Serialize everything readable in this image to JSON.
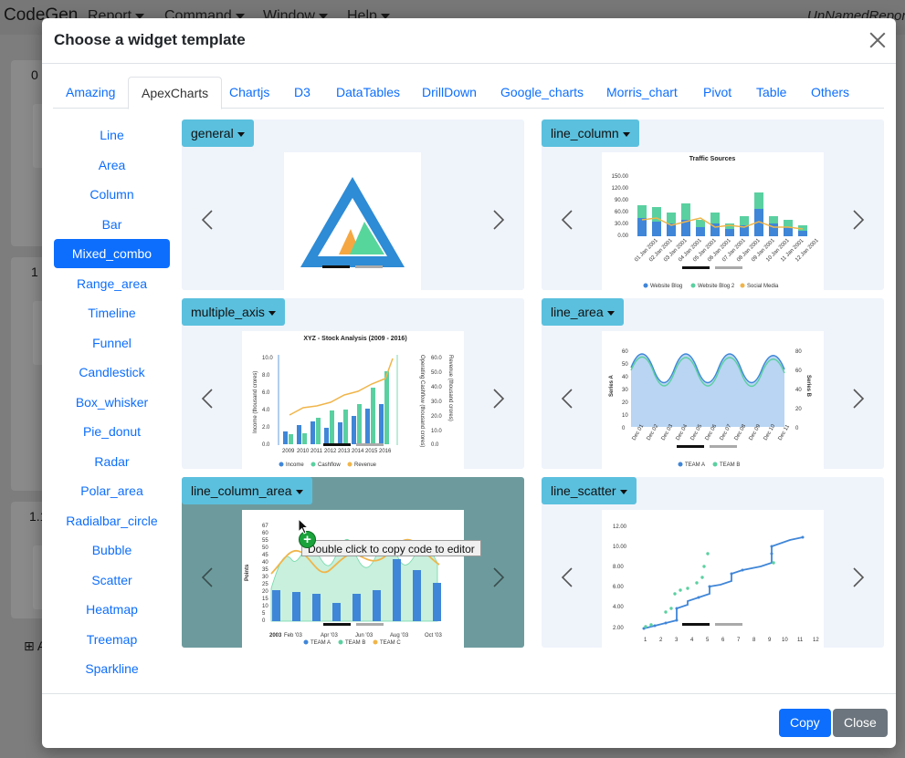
{
  "app": {
    "brand": "CodeGen",
    "menus": [
      "Report",
      "Command",
      "Window",
      "Help"
    ],
    "file": "UnNamedRepor",
    "panels": [
      "0",
      "1",
      "1.1"
    ],
    "add_label": "A"
  },
  "modal": {
    "title": "Choose a widget template",
    "tabs": [
      "Amazing",
      "ApexCharts",
      "Chartjs",
      "D3",
      "DataTables",
      "DrillDown",
      "Google_charts",
      "Morris_chart",
      "Pivot",
      "Table",
      "Others"
    ],
    "active_tab": "ApexCharts",
    "sidebar": [
      "Line",
      "Area",
      "Column",
      "Bar",
      "Mixed_combo",
      "Range_area",
      "Timeline",
      "Funnel",
      "Candlestick",
      "Box_whisker",
      "Pie_donut",
      "Radar",
      "Polar_area",
      "Radialbar_circle",
      "Bubble",
      "Scatter",
      "Heatmap",
      "Treemap",
      "Sparkline"
    ],
    "active_sidebar": "Mixed_combo",
    "cards": [
      {
        "label": "general"
      },
      {
        "label": "line_column",
        "title": "Traffic Sources",
        "yticks": [
          "150.00",
          "120.00",
          "90.00",
          "60.00",
          "30.00",
          "0.00"
        ],
        "xticks": [
          "01 Jan 2001",
          "02 Jan 2001",
          "03 Jan 2001",
          "04 Jan 2001",
          "05 Jan 2001",
          "06 Jan 2001",
          "07 Jan 2001",
          "08 Jan 2001",
          "09 Jan 2001",
          "10 Jan 2001",
          "11 Jan 2001",
          "12 Jan 2001"
        ],
        "legend": [
          "Website Blog",
          "Website Blog 2",
          "Social Media"
        ]
      },
      {
        "label": "multiple_axis",
        "title": "XYZ - Stock Analysis (2009 - 2016)",
        "yleft": [
          "10.0",
          "8.0",
          "6.0",
          "4.0",
          "2.0",
          "0.0"
        ],
        "yright": [
          "60.0",
          "50.0",
          "40.0",
          "30.0",
          "20.0",
          "10.0",
          "0.0"
        ],
        "ylabel_left": "Income (thousand crores)",
        "ylabel_mid": "Operating Cashflow (thousand crores)",
        "ylabel_right": "Revenue (thousand crores)",
        "xticks": [
          "2009",
          "2010",
          "2011",
          "2012",
          "2013",
          "2014",
          "2015",
          "2016"
        ],
        "legend": [
          "Income",
          "Cashflow",
          "Revenue"
        ]
      },
      {
        "label": "line_area",
        "yleft": [
          "60",
          "50",
          "40",
          "30",
          "20",
          "10",
          "0"
        ],
        "yright": [
          "80",
          "60",
          "40",
          "20",
          "0"
        ],
        "ylabel_left": "Series A",
        "ylabel_right": "Series B",
        "xticks": [
          "Dec 01",
          "Dec 02",
          "Dec 03",
          "Dec 04",
          "Dec 05",
          "Dec 06",
          "Dec 07",
          "Dec 08",
          "Dec 09",
          "Dec 10",
          "Dec 11"
        ],
        "legend": [
          "TEAM A",
          "TEAM B"
        ]
      },
      {
        "label": "line_column_area",
        "yticks": [
          "67",
          "60",
          "55",
          "50",
          "45",
          "40",
          "35",
          "30",
          "25",
          "20",
          "15",
          "10",
          "5",
          "0"
        ],
        "ylabel": "Points",
        "xticks": [
          "2003",
          "Feb '03",
          "Apr '03",
          "Jun '03",
          "Aug '03",
          "Oct '03"
        ],
        "legend": [
          "TEAM A",
          "TEAM B",
          "TEAM C"
        ]
      },
      {
        "label": "line_scatter",
        "yticks": [
          "12.00",
          "10.00",
          "8.00",
          "6.00",
          "4.00",
          "2.00"
        ],
        "xticks": [
          "1",
          "2",
          "3",
          "4",
          "5",
          "6",
          "7",
          "8",
          "9",
          "10",
          "11",
          "12"
        ]
      }
    ],
    "tooltip": "Double click to copy code to editor",
    "buttons": {
      "copy": "Copy",
      "close": "Close"
    }
  },
  "colors": {
    "primary": "#0d6efd",
    "secondary": "#6c757d",
    "info": "#5bc0de",
    "card_bg": "#eff4fb",
    "hover_bg": "#6d9b9d"
  }
}
